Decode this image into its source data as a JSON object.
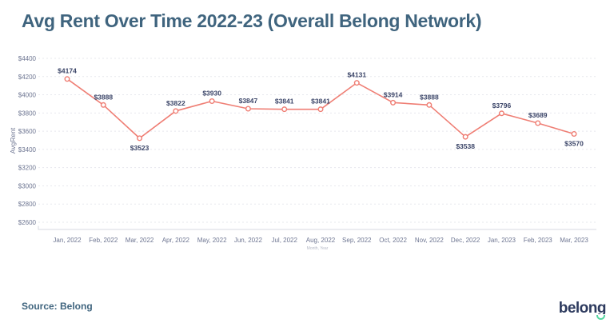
{
  "header": {
    "title": "Avg Rent Over Time 2022-23 (Overall Belong Network)"
  },
  "footer": {
    "source_label": "Source: Belong",
    "logo_text": "belong"
  },
  "chart_data": {
    "type": "line",
    "title": "Avg Rent Over Time 2022-23 (Overall Belong Network)",
    "xlabel": "Month, Year",
    "ylabel": "AvgRent",
    "x": [
      "Jan, 2022",
      "Feb, 2022",
      "Mar, 2022",
      "Apr, 2022",
      "May, 2022",
      "Jun, 2022",
      "Jul, 2022",
      "Aug, 2022",
      "Sep, 2022",
      "Oct, 2022",
      "Nov, 2022",
      "Dec, 2022",
      "Jan, 2023",
      "Feb, 2023",
      "Mar, 2023"
    ],
    "series": [
      {
        "name": "AvgRent",
        "values": [
          4174,
          3888,
          3523,
          3822,
          3930,
          3847,
          3841,
          3841,
          4131,
          3914,
          3888,
          3538,
          3796,
          3689,
          3570
        ]
      }
    ],
    "point_labels": [
      "$4174",
      "$3888",
      "$3523",
      "$3822",
      "$3930",
      "$3847",
      "$3841",
      "$3841",
      "$4131",
      "$3914",
      "$3888",
      "$3538",
      "$3796",
      "$3689",
      "$3570"
    ],
    "labels_below_indices": [
      2,
      11,
      14
    ],
    "ylim": [
      2600,
      4400
    ],
    "ytick_step": 200,
    "ytick_labels": [
      "$2600",
      "$2800",
      "$3000",
      "$3200",
      "$3400",
      "$3600",
      "$3800",
      "$4000",
      "$4200",
      "$4400"
    ],
    "grid": "horizontal-dashed",
    "legend": "none",
    "marker": "open-circle",
    "colors": {
      "line": "#ef7e74",
      "marker_fill": "#ffffff",
      "point_label": "#3b4568",
      "tick_label": "#6e7692",
      "grid": "#e7e8ee",
      "axis_line": "#d7d9e0",
      "title": "#3f647e",
      "source": "#3f647e",
      "xlabel_faint": "#b5b9c6",
      "logo_navy": "#2d3a5e",
      "logo_green": "#55d6a0",
      "background": "#ffffff"
    }
  }
}
